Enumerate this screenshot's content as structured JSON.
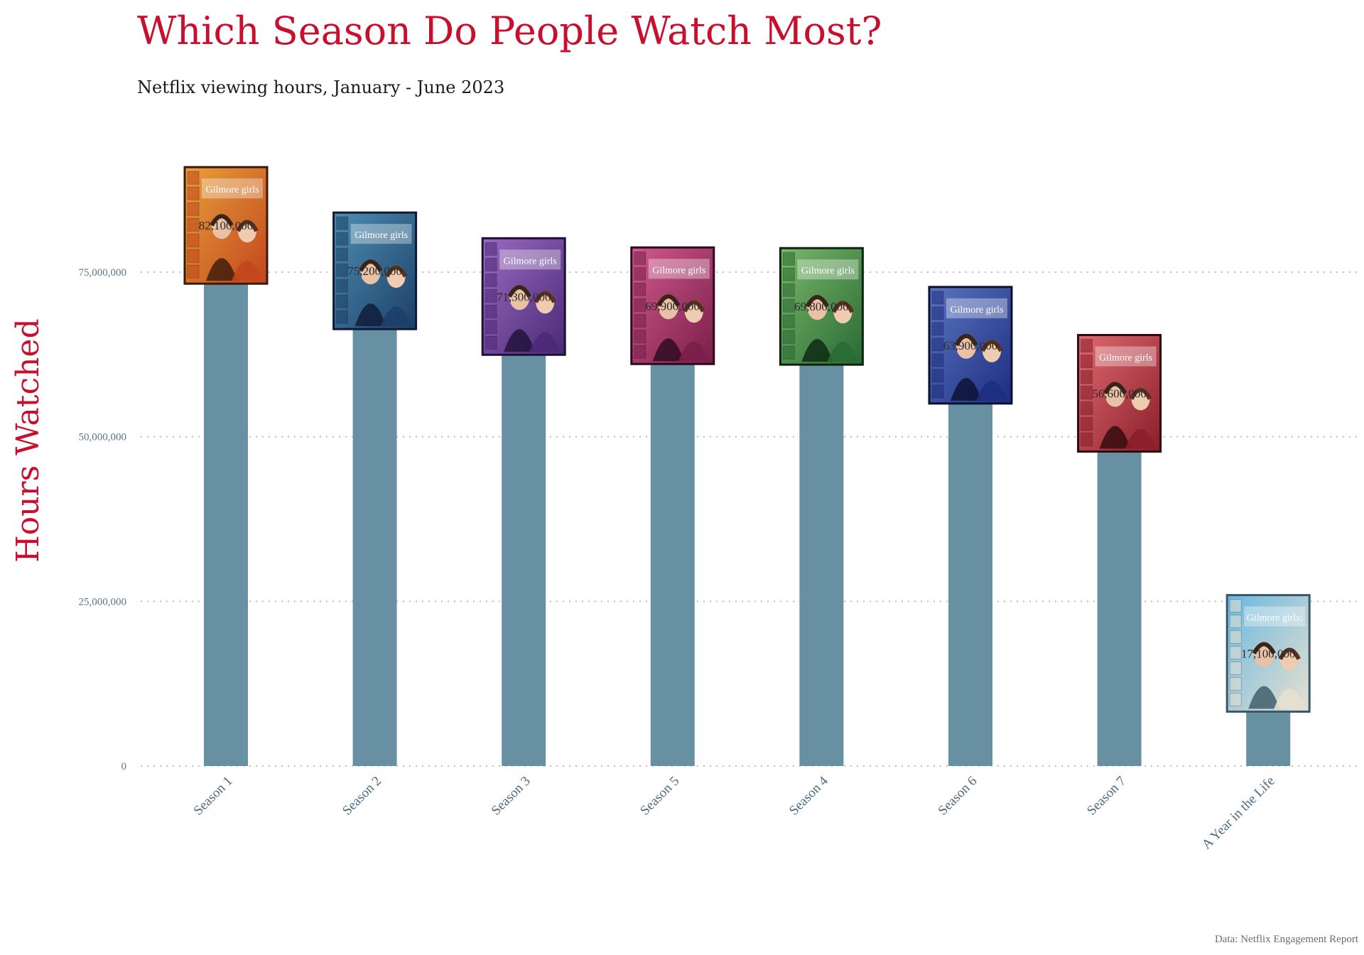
{
  "chart_data": {
    "type": "bar",
    "title": "Which Season Do People Watch Most?",
    "subtitle": "Netflix viewing hours, January - June 2023",
    "ylabel": "Hours Watched",
    "xlabel": "",
    "caption": "Data: Netflix Engagement Report",
    "categories": [
      "Season 1",
      "Season 2",
      "Season 3",
      "Season 5",
      "Season 4",
      "Season 6",
      "Season 7",
      "A Year in the Life"
    ],
    "values": [
      82100000,
      75200000,
      71300000,
      69900000,
      69800000,
      63900000,
      56600000,
      17100000
    ],
    "value_labels": [
      "82,100,000",
      "75,200,000",
      "71,300,000",
      "69,900,000",
      "69,800,000",
      "63,900,000",
      "56,600,000",
      "17,100,000"
    ],
    "ylim": [
      0,
      96000000
    ],
    "yticks": [
      0,
      25000000,
      50000000,
      75000000
    ],
    "ytick_labels": [
      "0",
      "25,000,000",
      "50,000,000",
      "75,000,000"
    ],
    "grid": true,
    "legend": "none",
    "colors": {
      "bar": "#6890a3",
      "title": "#c8102e",
      "axis_text": "#5a7486"
    },
    "poster_themes": [
      {
        "bg1": "#e8a03a",
        "bg2": "#c2461e",
        "frame": "#3a1a0a",
        "logo": "Gilmore girls"
      },
      {
        "bg1": "#4d8fb0",
        "bg2": "#1d3f6a",
        "frame": "#0e1a36",
        "logo": "Gilmore girls"
      },
      {
        "bg1": "#9a6ac0",
        "bg2": "#4c2a78",
        "frame": "#1e1036",
        "logo": "Gilmore girls"
      },
      {
        "bg1": "#d05a8c",
        "bg2": "#7a1e4a",
        "frame": "#2a0a1c",
        "logo": "Gilmore girls"
      },
      {
        "bg1": "#7ab86a",
        "bg2": "#2a6a34",
        "frame": "#0c2410",
        "logo": "Gilmore girls"
      },
      {
        "bg1": "#5a76c0",
        "bg2": "#1e2e80",
        "frame": "#0a1030",
        "logo": "Gilmore girls"
      },
      {
        "bg1": "#e06a70",
        "bg2": "#8a1e2a",
        "frame": "#2e0a0e",
        "logo": "Gilmore girls"
      },
      {
        "bg1": "#6ab8e0",
        "bg2": "#e8e0d0",
        "frame": "#3a5868",
        "logo": "Gilmore girls:"
      }
    ]
  }
}
